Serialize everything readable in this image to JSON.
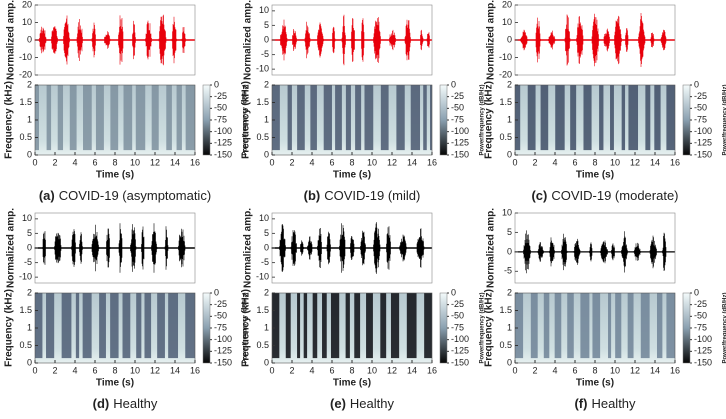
{
  "labels": {
    "amp": "Normalized amp.",
    "freq": "Frequency (kHz)",
    "time": "Time (s)",
    "power": "Power/frequency (dB/Hz)"
  },
  "xlim": [
    0,
    16
  ],
  "xticks": [
    0,
    2,
    4,
    6,
    8,
    10,
    12,
    14,
    16
  ],
  "freq_lim": [
    0,
    2
  ],
  "freq_ticks": [
    0,
    0.5,
    1,
    1.5,
    2
  ],
  "power_lim": [
    -150,
    0
  ],
  "power_ticks": [
    0,
    -25,
    -50,
    -75,
    -100,
    -125,
    -150
  ],
  "panels": [
    {
      "label": "(a)",
      "caption": "COVID-19 (asymptomatic)",
      "color": "#e8000b",
      "ylim": [
        -20,
        20
      ],
      "yticks": [
        -20,
        -10,
        0,
        10,
        20
      ]
    },
    {
      "label": "(b)",
      "caption": "COVID-19 (mild)",
      "color": "#e8000b",
      "ylim": [
        -12,
        12
      ],
      "yticks": [
        -10,
        -5,
        0,
        5,
        10
      ]
    },
    {
      "label": "(c)",
      "caption": "COVID-19 (moderate)",
      "color": "#e8000b",
      "ylim": [
        -20,
        20
      ],
      "yticks": [
        -20,
        -10,
        0,
        10,
        20
      ]
    },
    {
      "label": "(d)",
      "caption": "Healthy",
      "color": "#000000",
      "ylim": [
        -12,
        12
      ],
      "yticks": [
        -10,
        -5,
        0,
        5,
        10
      ]
    },
    {
      "label": "(e)",
      "caption": "Healthy",
      "color": "#000000",
      "ylim": [
        -12,
        12
      ],
      "yticks": [
        -10,
        -5,
        0,
        5,
        10
      ]
    },
    {
      "label": "(f)",
      "caption": "Healthy",
      "color": "#000000",
      "ylim": [
        -8,
        10
      ],
      "yticks": [
        -5,
        0,
        5,
        10
      ]
    }
  ]
}
